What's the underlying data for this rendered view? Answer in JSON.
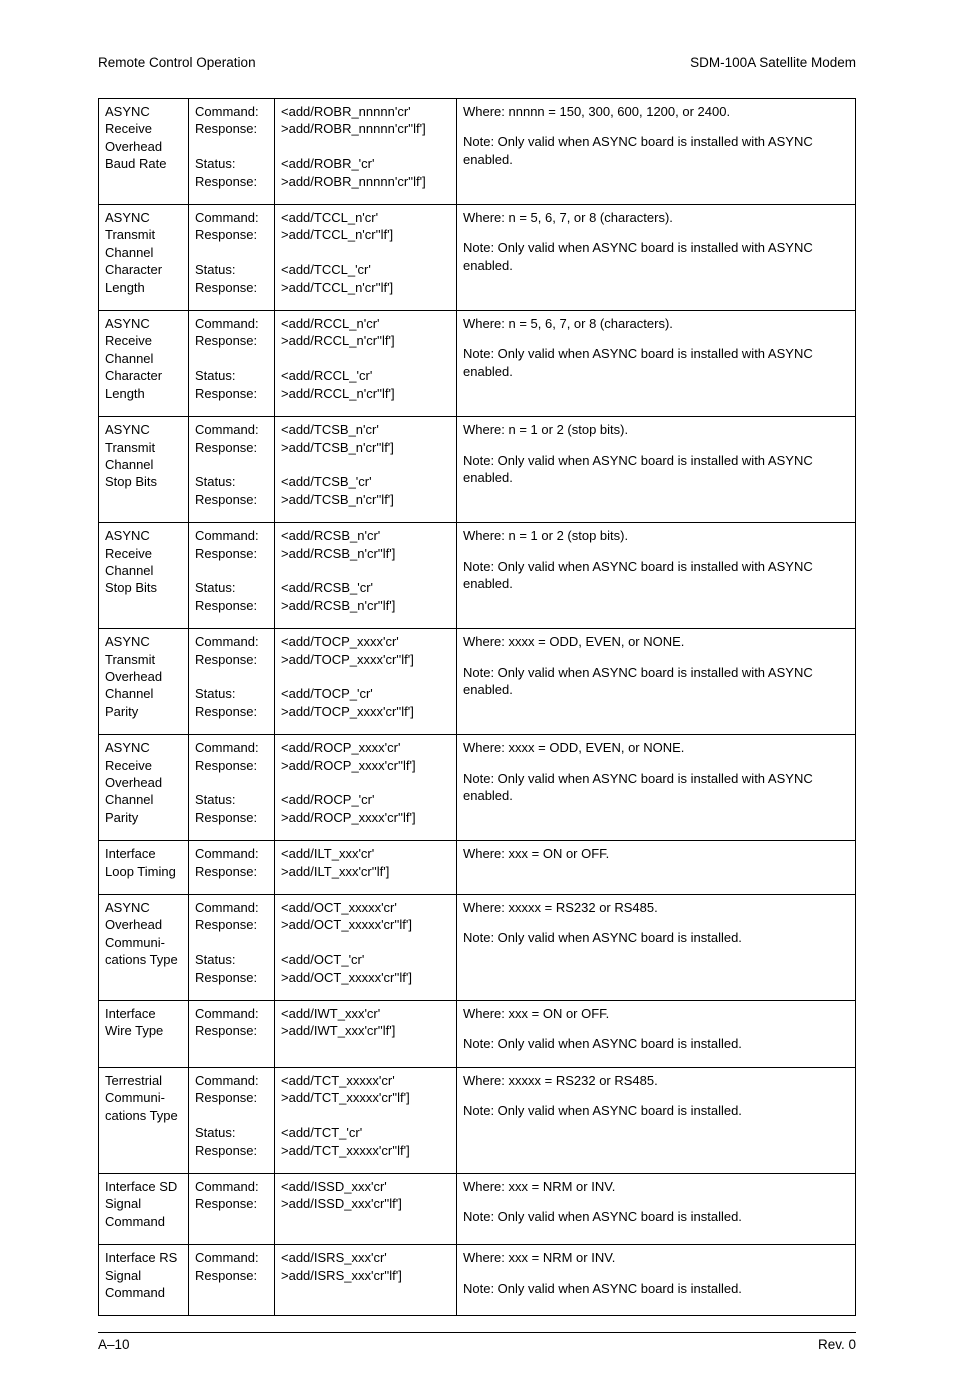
{
  "header": {
    "left": "Remote Control Operation",
    "right": "SDM-100A Satellite Modem"
  },
  "footer": {
    "left": "A–10",
    "right": "Rev. 0"
  },
  "labels": {
    "command": "Command:",
    "response": "Response:",
    "status": "Status:"
  },
  "rows": [
    {
      "name": "ASYNC Receive Overhead Baud Rate",
      "has_status": true,
      "cmd": "<add/ROBR_nnnnn'cr'",
      "cmd_resp": ">add/ROBR_nnnnn'cr''lf']",
      "stat": "<add/ROBR_'cr'",
      "stat_resp": ">add/ROBR_nnnnn'cr''lf']",
      "where": "Where: nnnnn = 150, 300, 600, 1200, or 2400.",
      "note": "Note: Only valid when ASYNC board is installed with ASYNC enabled."
    },
    {
      "name": "ASYNC Transmit Channel Character Length",
      "has_status": true,
      "cmd": "<add/TCCL_n'cr'",
      "cmd_resp": ">add/TCCL_n'cr''lf']",
      "stat": "<add/TCCL_'cr'",
      "stat_resp": ">add/TCCL_n'cr''lf']",
      "where": "Where: n = 5, 6, 7, or 8 (characters).",
      "note": "Note: Only valid when ASYNC board is installed with ASYNC enabled."
    },
    {
      "name": "ASYNC Receive Channel Character Length",
      "has_status": true,
      "cmd": "<add/RCCL_n'cr'",
      "cmd_resp": ">add/RCCL_n'cr''lf']",
      "stat": "<add/RCCL_'cr'",
      "stat_resp": ">add/RCCL_n'cr''lf']",
      "where": "Where: n = 5, 6, 7, or 8 (characters).",
      "note": "Note: Only valid when ASYNC board is installed with ASYNC enabled."
    },
    {
      "name": "ASYNC Transmit Channel Stop Bits",
      "has_status": true,
      "cmd": "<add/TCSB_n'cr'",
      "cmd_resp": ">add/TCSB_n'cr''lf']",
      "stat": "<add/TCSB_'cr'",
      "stat_resp": ">add/TCSB_n'cr''lf']",
      "where": "Where: n = 1 or 2 (stop bits).",
      "note": "Note: Only valid when ASYNC board is installed with ASYNC enabled."
    },
    {
      "name": "ASYNC Receive Channel Stop Bits",
      "has_status": true,
      "cmd": "<add/RCSB_n'cr'",
      "cmd_resp": ">add/RCSB_n'cr''lf']",
      "stat": "<add/RCSB_'cr'",
      "stat_resp": ">add/RCSB_n'cr''lf']",
      "where": "Where: n = 1 or 2 (stop bits).",
      "note": "Note: Only valid when ASYNC board is installed with ASYNC enabled."
    },
    {
      "name": "ASYNC Transmit Overhead Channel Parity",
      "has_status": true,
      "cmd": "<add/TOCP_xxxx'cr'",
      "cmd_resp": ">add/TOCP_xxxx'cr''lf']",
      "stat": "<add/TOCP_'cr'",
      "stat_resp": ">add/TOCP_xxxx'cr''lf']",
      "where": "Where: xxxx = ODD, EVEN, or NONE.",
      "note": "Note: Only valid when ASYNC board is installed with ASYNC enabled."
    },
    {
      "name": "ASYNC Receive Overhead Channel Parity",
      "has_status": true,
      "cmd": "<add/ROCP_xxxx'cr'",
      "cmd_resp": ">add/ROCP_xxxx'cr''lf']",
      "stat": "<add/ROCP_'cr'",
      "stat_resp": ">add/ROCP_xxxx'cr''lf']",
      "where": "Where: xxxx = ODD, EVEN, or NONE.",
      "note": "Note: Only valid when ASYNC board is installed with ASYNC enabled."
    },
    {
      "name": "Interface Loop Timing",
      "has_status": false,
      "cmd": "<add/ILT_xxx'cr'",
      "cmd_resp": ">add/ILT_xxx'cr''lf']",
      "where": "Where: xxx = ON or OFF.",
      "note": ""
    },
    {
      "name": "ASYNC Overhead Communi-\ncations Type",
      "has_status": true,
      "cmd": "<add/OCT_xxxxx'cr'",
      "cmd_resp": ">add/OCT_xxxxx'cr''lf']",
      "stat": "<add/OCT_'cr'",
      "stat_resp": ">add/OCT_xxxxx'cr''lf']",
      "where": "Where: xxxxx = RS232 or RS485.",
      "note": "Note: Only valid when ASYNC board is installed."
    },
    {
      "name": "Interface Wire Type",
      "has_status": false,
      "cmd": "<add/IWT_xxx'cr'",
      "cmd_resp": ">add/IWT_xxx'cr''lf']",
      "where": "Where: xxx = ON or OFF.",
      "note": "Note: Only valid when ASYNC board is installed."
    },
    {
      "name": "Terrestrial Communi-\ncations Type",
      "has_status": true,
      "cmd": "<add/TCT_xxxxx'cr'",
      "cmd_resp": ">add/TCT_xxxxx'cr''lf']",
      "stat": "<add/TCT_'cr'",
      "stat_resp": ">add/TCT_xxxxx'cr''lf']",
      "where": "Where: xxxxx = RS232 or RS485.",
      "note": "Note: Only valid when ASYNC board is installed."
    },
    {
      "name": "Interface SD Signal Command",
      "has_status": false,
      "cmd": "<add/ISSD_xxx'cr'",
      "cmd_resp": ">add/ISSD_xxx'cr''lf']",
      "where": "Where: xxx = NRM or INV.",
      "note": "Note: Only valid when ASYNC board is installed."
    },
    {
      "name": "Interface RS Signal Command",
      "has_status": false,
      "cmd": "<add/ISRS_xxx'cr'",
      "cmd_resp": ">add/ISRS_xxx'cr''lf']",
      "where": "Where: xxx = NRM or INV.",
      "note": "Note: Only valid when ASYNC board is installed."
    }
  ]
}
